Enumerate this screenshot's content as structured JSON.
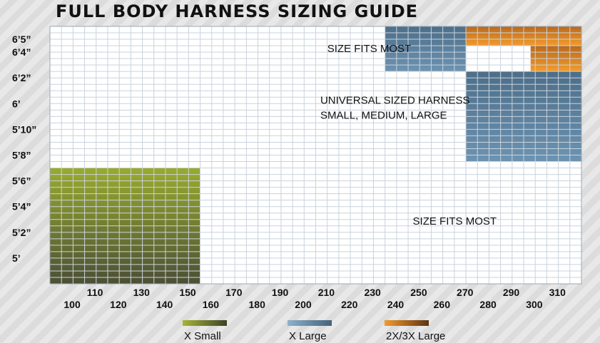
{
  "chart_data": {
    "type": "heatmap",
    "title": "FULL BODY HARNESS SIZING GUIDE",
    "xlabel": "",
    "ylabel": "",
    "xlim": [
      90,
      320
    ],
    "ylim_inches": [
      58,
      78
    ],
    "x_ticks": [
      {
        "value": 100,
        "label": "100"
      },
      {
        "value": 110,
        "label": "110"
      },
      {
        "value": 120,
        "label": "120"
      },
      {
        "value": 130,
        "label": "130"
      },
      {
        "value": 140,
        "label": "140"
      },
      {
        "value": 150,
        "label": "150"
      },
      {
        "value": 160,
        "label": "160"
      },
      {
        "value": 170,
        "label": "170"
      },
      {
        "value": 180,
        "label": "180"
      },
      {
        "value": 190,
        "label": "190"
      },
      {
        "value": 200,
        "label": "200"
      },
      {
        "value": 210,
        "label": "210"
      },
      {
        "value": 220,
        "label": "220"
      },
      {
        "value": 230,
        "label": "230"
      },
      {
        "value": 240,
        "label": "240"
      },
      {
        "value": 250,
        "label": "250"
      },
      {
        "value": 260,
        "label": "260"
      },
      {
        "value": 270,
        "label": "270"
      },
      {
        "value": 280,
        "label": "280"
      },
      {
        "value": 290,
        "label": "290"
      },
      {
        "value": 300,
        "label": "300"
      },
      {
        "value": 310,
        "label": "310"
      }
    ],
    "y_ticks": [
      {
        "value": 60,
        "label": "5’"
      },
      {
        "value": 62,
        "label": "5’2”"
      },
      {
        "value": 64,
        "label": "5’4”"
      },
      {
        "value": 66,
        "label": "5’6”"
      },
      {
        "value": 68,
        "label": "5’8”"
      },
      {
        "value": 70,
        "label": "5’10”"
      },
      {
        "value": 72,
        "label": "6’"
      },
      {
        "value": 74,
        "label": "6’2”"
      },
      {
        "value": 76,
        "label": "6’4”"
      },
      {
        "value": 77,
        "label": "6’5”"
      }
    ],
    "regions": [
      {
        "name": "X Small",
        "color_top": "#9aab2e",
        "color_bottom": "#4b4f34",
        "rects": [
          {
            "x0": 90,
            "x1": 155,
            "y0": 58,
            "y1": 67
          }
        ]
      },
      {
        "name": "X Large",
        "color_top": "#4d6e89",
        "color_bottom": "#6d93b2",
        "rects": [
          {
            "x0": 235,
            "x1": 270,
            "y0": 74.5,
            "y1": 78
          },
          {
            "x0": 270,
            "x1": 320,
            "y0": 67.5,
            "y1": 74.5
          }
        ]
      },
      {
        "name": "2X/3X Large",
        "color_top": "#b8691e",
        "color_bottom": "#f39b2c",
        "rects": [
          {
            "x0": 270,
            "x1": 320,
            "y0": 76.5,
            "y1": 78
          },
          {
            "x0": 298,
            "x1": 320,
            "y0": 74.5,
            "y1": 76.5
          }
        ]
      }
    ],
    "annotations": [
      {
        "lines": [
          "SIZE FITS MOST"
        ],
        "x": 210,
        "y": 76
      },
      {
        "lines": [
          "UNIVERSAL SIZED HARNESS",
          "SMALL, MEDIUM, LARGE"
        ],
        "x": 207,
        "y": 72
      },
      {
        "lines": [
          "SIZE FITS MOST"
        ],
        "x": 247,
        "y": 62.6
      }
    ],
    "legend": {
      "position": "bottom",
      "items": [
        {
          "label": "X Small",
          "color_left": "#a6b535",
          "color_right": "#3d4226"
        },
        {
          "label": "X Large",
          "color_left": "#8fb0cc",
          "color_right": "#44627a"
        },
        {
          "label": "2X/3X Large",
          "color_left": "#f39b2c",
          "color_right": "#5e3412"
        }
      ]
    }
  }
}
